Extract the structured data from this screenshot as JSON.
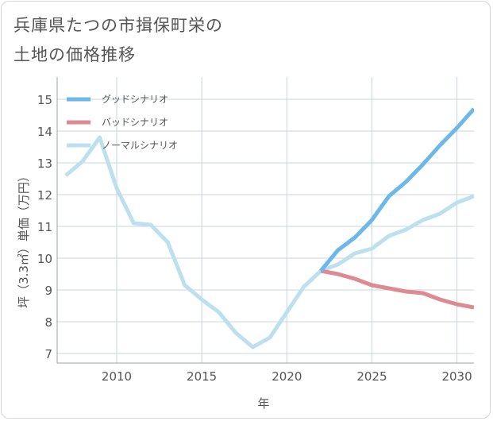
{
  "chart_data": {
    "type": "line",
    "title_line1": "兵庫県たつの市揖保町栄の",
    "title_line2": "土地の価格推移",
    "xlabel": "年",
    "ylabel": "坪（3.3㎡）単価（万円）",
    "xlim": [
      2006.5,
      2031
    ],
    "ylim": [
      6.7,
      15.7
    ],
    "xticks": [
      2010,
      2015,
      2020,
      2025,
      2030
    ],
    "yticks": [
      7,
      8,
      9,
      10,
      11,
      12,
      13,
      14,
      15
    ],
    "grid": true,
    "legend_position": "top-left",
    "series": [
      {
        "name": "グッドシナリオ",
        "color": "#6cb8ea",
        "x": [
          2022,
          2023,
          2024,
          2025,
          2026,
          2027,
          2028,
          2029,
          2030,
          2031
        ],
        "y": [
          9.6,
          10.25,
          10.65,
          11.2,
          11.95,
          12.4,
          12.95,
          13.55,
          14.1,
          14.7
        ]
      },
      {
        "name": "バッドシナリオ",
        "color": "#de8a92",
        "x": [
          2022,
          2023,
          2024,
          2025,
          2026,
          2027,
          2028,
          2029,
          2030,
          2031
        ],
        "y": [
          9.6,
          9.5,
          9.35,
          9.15,
          9.05,
          8.95,
          8.9,
          8.7,
          8.55,
          8.45
        ]
      },
      {
        "name": "ノーマルシナリオ",
        "color": "#bde0ee",
        "x": [
          2007,
          2008,
          2009,
          2010,
          2011,
          2012,
          2013,
          2014,
          2015,
          2016,
          2017,
          2018,
          2019,
          2020,
          2021,
          2022,
          2023,
          2024,
          2025,
          2026,
          2027,
          2028,
          2029,
          2030,
          2031
        ],
        "y": [
          12.6,
          13.05,
          13.8,
          12.2,
          11.1,
          11.05,
          10.5,
          9.15,
          8.7,
          8.3,
          7.65,
          7.2,
          7.5,
          8.3,
          9.1,
          9.6,
          9.8,
          10.15,
          10.3,
          10.7,
          10.9,
          11.2,
          11.4,
          11.75,
          11.95
        ]
      }
    ]
  }
}
